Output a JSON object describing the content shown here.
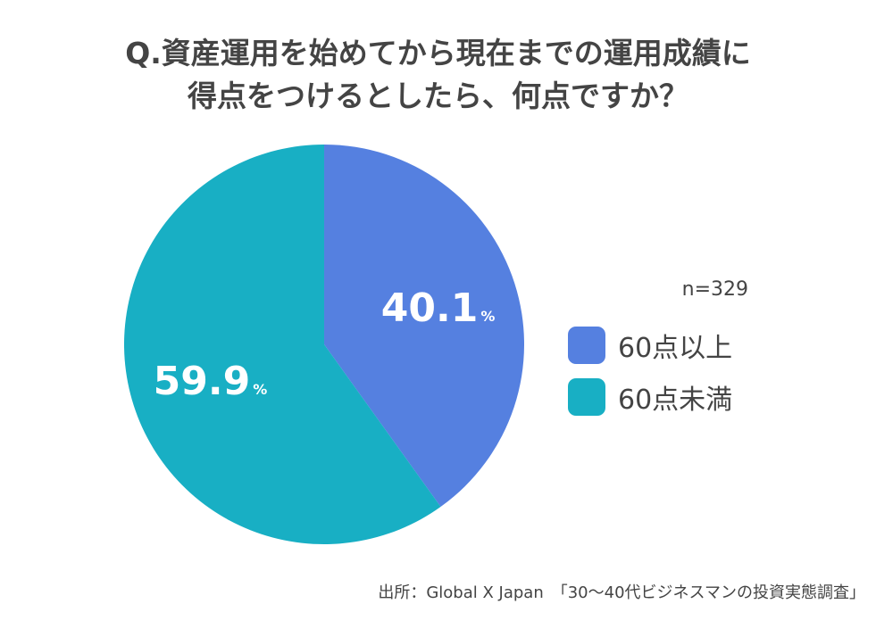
{
  "title": {
    "line1": "Q.資産運用を始めてから現在までの運用成績に",
    "line2": "得点をつけるとしたら、何点ですか？"
  },
  "n_label": "n=329",
  "source": "出所：Global X Japan　「30〜40代ビジネスマンの投資実態調査」",
  "colors": {
    "blue": "#5580e0",
    "teal": "#18afc4",
    "text": "#444444",
    "label": "#ffffff"
  },
  "chart_data": {
    "type": "pie",
    "title": "Q.資産運用を始めてから現在までの運用成績に得点をつけるとしたら、何点ですか？",
    "categories": [
      "60点以上",
      "60点未満"
    ],
    "values": [
      40.1,
      59.9
    ],
    "value_labels": [
      "40.1",
      "59.9"
    ],
    "unit": "%",
    "colors": [
      "#5580e0",
      "#18afc4"
    ],
    "start": "12 o'clock",
    "direction": "clockwise",
    "legend": "right"
  }
}
